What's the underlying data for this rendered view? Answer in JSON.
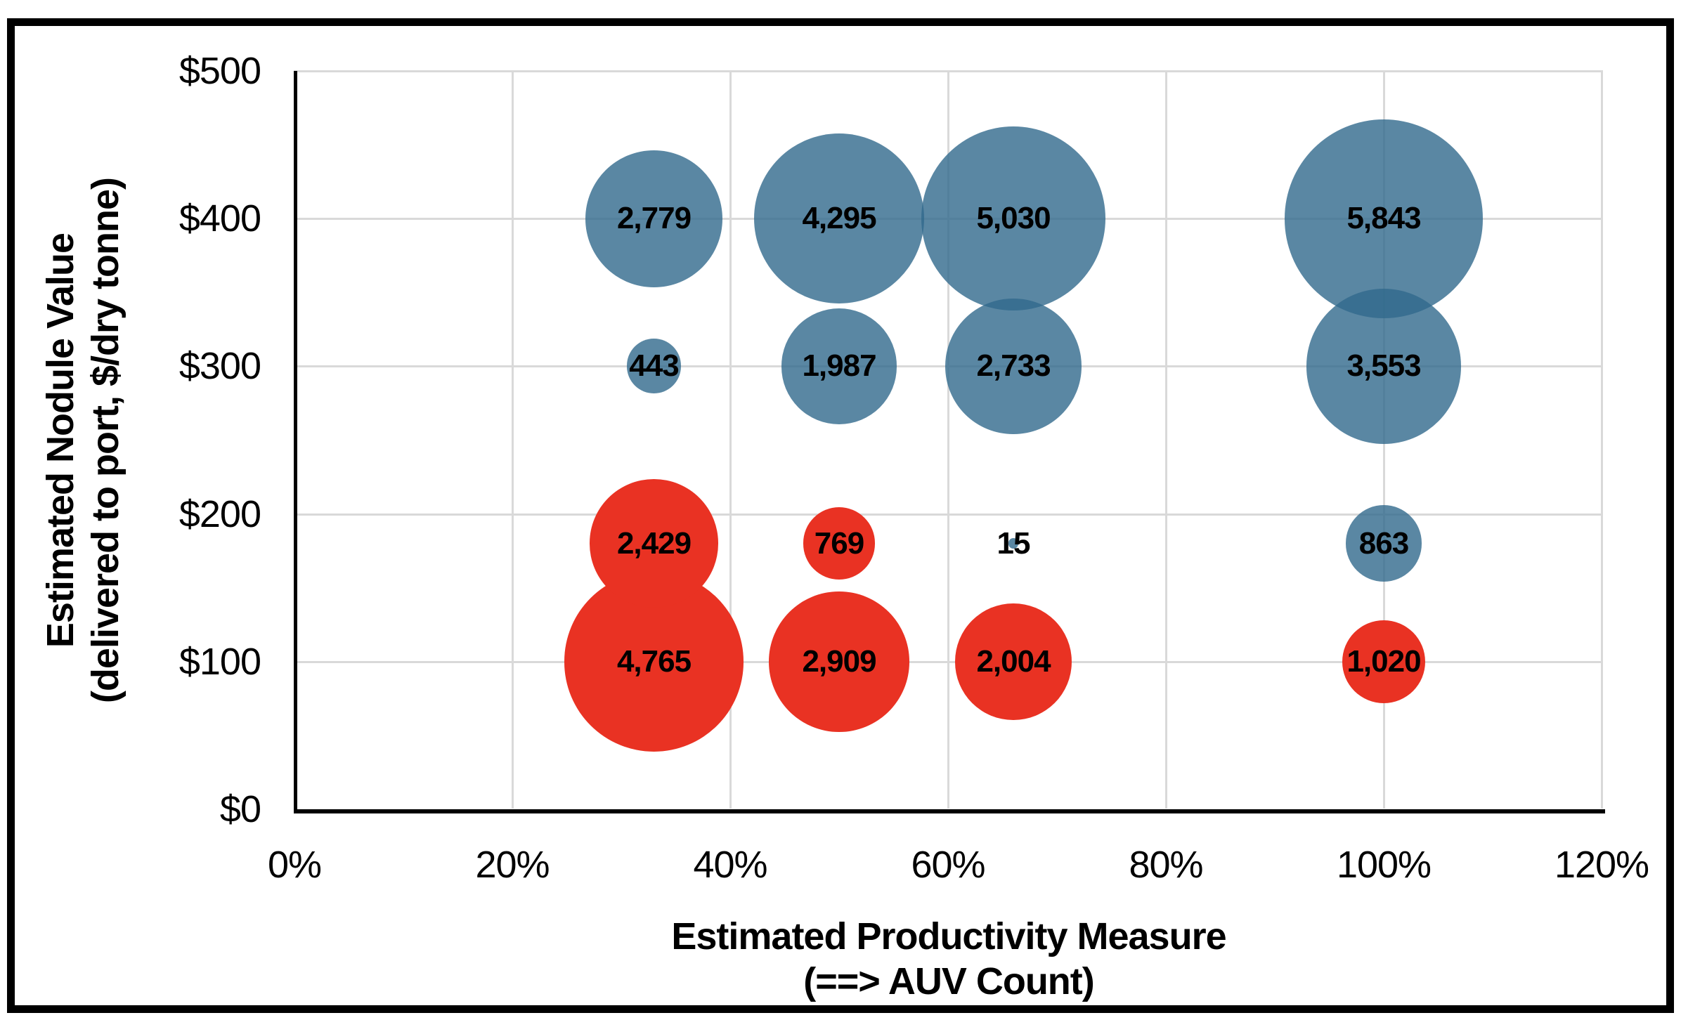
{
  "figure": {
    "background_color": "#FFFFFF",
    "border_color": "#000000"
  },
  "chart_data": {
    "type": "scatter",
    "subtype": "bubble",
    "title": "",
    "xlabel_line1": "Estimated Productivity Measure",
    "xlabel_line2": "(==> AUV Count)",
    "ylabel_line1": "Estimated Nodule Value",
    "ylabel_line2": "(delivered to port, $/dry tonne)",
    "xlim": [
      0,
      120
    ],
    "ylim": [
      0,
      500
    ],
    "grid": true,
    "gridline_color": "#D9D9D9",
    "x_ticks": [
      {
        "value": 0,
        "label": "0%"
      },
      {
        "value": 20,
        "label": "20%"
      },
      {
        "value": 40,
        "label": "40%"
      },
      {
        "value": 60,
        "label": "60%"
      },
      {
        "value": 80,
        "label": "80%"
      },
      {
        "value": 100,
        "label": "100%"
      },
      {
        "value": 120,
        "label": "120%"
      }
    ],
    "y_ticks": [
      {
        "value": 0,
        "label": "$0"
      },
      {
        "value": 100,
        "label": "$100"
      },
      {
        "value": 200,
        "label": "$200"
      },
      {
        "value": 300,
        "label": "$300"
      },
      {
        "value": 400,
        "label": "$400"
      },
      {
        "value": 500,
        "label": "$500"
      }
    ],
    "series": [
      {
        "name": "blue-scenarios",
        "color": "#31698C",
        "opacity": 0.8,
        "points": [
          {
            "x_pct": 33,
            "y_dollars": 400,
            "size": 2779,
            "label": "2,779"
          },
          {
            "x_pct": 50,
            "y_dollars": 400,
            "size": 4295,
            "label": "4,295"
          },
          {
            "x_pct": 66,
            "y_dollars": 400,
            "size": 5030,
            "label": "5,030"
          },
          {
            "x_pct": 100,
            "y_dollars": 400,
            "size": 5843,
            "label": "5,843"
          },
          {
            "x_pct": 33,
            "y_dollars": 300,
            "size": 443,
            "label": "443"
          },
          {
            "x_pct": 50,
            "y_dollars": 300,
            "size": 1987,
            "label": "1,987"
          },
          {
            "x_pct": 66,
            "y_dollars": 300,
            "size": 2733,
            "label": "2,733"
          },
          {
            "x_pct": 100,
            "y_dollars": 300,
            "size": 3553,
            "label": "3,553"
          },
          {
            "x_pct": 66,
            "y_dollars": 180,
            "size": 15,
            "label": "15"
          },
          {
            "x_pct": 100,
            "y_dollars": 180,
            "size": 863,
            "label": "863"
          }
        ]
      },
      {
        "name": "red-scenarios",
        "color": "#E93223",
        "opacity": 1,
        "points": [
          {
            "x_pct": 33,
            "y_dollars": 180,
            "size": 2429,
            "label": "2,429"
          },
          {
            "x_pct": 50,
            "y_dollars": 180,
            "size": 769,
            "label": "769"
          },
          {
            "x_pct": 33,
            "y_dollars": 100,
            "size": 4765,
            "label": "4,765"
          },
          {
            "x_pct": 50,
            "y_dollars": 100,
            "size": 2909,
            "label": "2,909"
          },
          {
            "x_pct": 66,
            "y_dollars": 100,
            "size": 2004,
            "label": "2,004"
          },
          {
            "x_pct": 100,
            "y_dollars": 100,
            "size": 1020,
            "label": "1,020"
          }
        ]
      }
    ]
  }
}
